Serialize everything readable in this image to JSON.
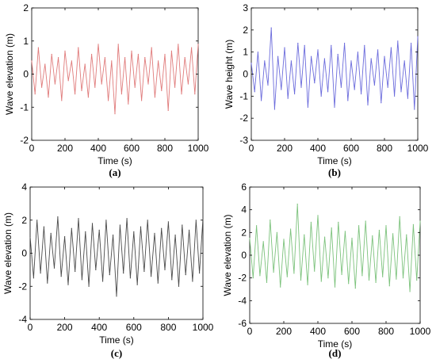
{
  "chart_data": [
    {
      "id": "a",
      "type": "line",
      "caption": "(a)",
      "xlabel": "Time (s)",
      "ylabel": "Wave elevation (m)",
      "xlim": [
        0,
        1000
      ],
      "ylim": [
        -2,
        2
      ],
      "xticks": [
        0,
        200,
        400,
        600,
        800,
        1000
      ],
      "yticks": [
        -2,
        -1,
        0,
        1,
        2
      ],
      "grid": false,
      "color": "#e07b7b",
      "series": [
        {
          "x": [
            0,
            20,
            40,
            60,
            80,
            100,
            120,
            140,
            160,
            180,
            200,
            220,
            240,
            260,
            280,
            300,
            320,
            340,
            360,
            380,
            400,
            420,
            440,
            460,
            480,
            500,
            520,
            540,
            560,
            580,
            600,
            620,
            640,
            660,
            680,
            700,
            720,
            740,
            760,
            780,
            800,
            820,
            840,
            860,
            880,
            900,
            920,
            940,
            960,
            980,
            1000
          ],
          "values": [
            0.4,
            -0.6,
            0.8,
            -0.4,
            0.3,
            -0.7,
            0.6,
            -0.3,
            0.5,
            -0.8,
            0.7,
            -0.2,
            0.4,
            -0.6,
            0.8,
            -0.5,
            0.3,
            -0.7,
            0.6,
            -0.4,
            0.9,
            -0.3,
            0.5,
            -0.8,
            0.4,
            -1.2,
            0.9,
            -0.6,
            0.5,
            -0.9,
            0.7,
            -0.4,
            0.6,
            -0.8,
            0.5,
            -0.3,
            0.8,
            -0.7,
            0.4,
            -0.5,
            0.6,
            -1.1,
            0.7,
            -0.4,
            0.9,
            -0.6,
            0.5,
            -0.3,
            0.8,
            -0.6,
            0.9
          ]
        }
      ]
    },
    {
      "id": "b",
      "type": "line",
      "caption": "(b)",
      "xlabel": "Time (s)",
      "ylabel": "Wave height (m)",
      "xlim": [
        0,
        1000
      ],
      "ylim": [
        -3,
        3
      ],
      "xticks": [
        0,
        200,
        400,
        600,
        800,
        1000
      ],
      "yticks": [
        -3,
        -2,
        -1,
        0,
        1,
        2,
        3
      ],
      "grid": false,
      "color": "#6b6bdc",
      "series": [
        {
          "x": [
            0,
            20,
            40,
            60,
            80,
            100,
            120,
            140,
            160,
            180,
            200,
            220,
            240,
            260,
            280,
            300,
            320,
            340,
            360,
            380,
            400,
            420,
            440,
            460,
            480,
            500,
            520,
            540,
            560,
            580,
            600,
            620,
            640,
            660,
            680,
            700,
            720,
            740,
            760,
            780,
            800,
            820,
            840,
            860,
            880,
            900,
            920,
            940,
            960,
            980,
            1000
          ],
          "values": [
            0.5,
            -0.8,
            1.0,
            -1.2,
            0.6,
            -0.5,
            2.1,
            -1.6,
            0.8,
            -0.7,
            1.2,
            -1.1,
            0.6,
            -0.9,
            1.4,
            -0.6,
            1.3,
            -1.5,
            0.8,
            -0.4,
            1.1,
            -1.0,
            0.7,
            -0.8,
            1.3,
            -1.5,
            0.9,
            -0.6,
            1.4,
            -1.2,
            0.6,
            -0.7,
            1.0,
            -0.9,
            1.3,
            -1.4,
            0.7,
            -0.5,
            1.1,
            -1.3,
            0.8,
            -0.6,
            1.2,
            -1.0,
            1.5,
            -0.8,
            0.6,
            -1.1,
            1.4,
            -1.6,
            1.7
          ]
        }
      ]
    },
    {
      "id": "c",
      "type": "line",
      "caption": "(c)",
      "xlabel": "Time (s)",
      "ylabel": "Wave elevation (m)",
      "xlim": [
        0,
        1000
      ],
      "ylim": [
        -4,
        4
      ],
      "xticks": [
        0,
        200,
        400,
        600,
        800,
        1000
      ],
      "yticks": [
        -4,
        -2,
        0,
        2,
        4
      ],
      "grid": false,
      "color": "#4a4a4a",
      "series": [
        {
          "x": [
            0,
            20,
            40,
            60,
            80,
            100,
            120,
            140,
            160,
            180,
            200,
            220,
            240,
            260,
            280,
            300,
            320,
            340,
            360,
            380,
            400,
            420,
            440,
            460,
            480,
            500,
            520,
            540,
            560,
            580,
            600,
            620,
            640,
            660,
            680,
            700,
            720,
            740,
            760,
            780,
            800,
            820,
            840,
            860,
            880,
            900,
            920,
            940,
            960,
            980,
            1000
          ],
          "values": [
            1.0,
            -1.5,
            2.0,
            -1.2,
            1.6,
            -1.8,
            1.2,
            -0.9,
            2.2,
            -1.4,
            1.0,
            -1.9,
            1.5,
            -1.1,
            2.1,
            -1.6,
            1.3,
            -2.0,
            1.8,
            -1.0,
            1.4,
            -1.7,
            2.0,
            -1.3,
            1.1,
            -2.6,
            1.7,
            -1.2,
            2.1,
            -1.5,
            1.3,
            -1.9,
            1.6,
            -1.1,
            2.0,
            -1.4,
            1.2,
            -1.8,
            1.5,
            -1.0,
            1.9,
            -1.6,
            1.1,
            -2.0,
            1.7,
            -1.3,
            1.4,
            -1.7,
            2.0,
            -1.2,
            2.1
          ]
        }
      ]
    },
    {
      "id": "d",
      "type": "line",
      "caption": "(d)",
      "xlabel": "Time (s)",
      "ylabel": "Wave elevation (m)",
      "xlim": [
        0,
        1000
      ],
      "ylim": [
        -6,
        6
      ],
      "xticks": [
        0,
        200,
        400,
        600,
        800,
        1000
      ],
      "yticks": [
        -6,
        -4,
        -2,
        0,
        2,
        4,
        6
      ],
      "grid": false,
      "color": "#7cc27c",
      "series": [
        {
          "x": [
            0,
            20,
            40,
            60,
            80,
            100,
            120,
            140,
            160,
            180,
            200,
            220,
            240,
            260,
            280,
            300,
            320,
            340,
            360,
            380,
            400,
            420,
            440,
            460,
            480,
            500,
            520,
            540,
            560,
            580,
            600,
            620,
            640,
            660,
            680,
            700,
            720,
            740,
            760,
            780,
            800,
            820,
            840,
            860,
            880,
            900,
            920,
            940,
            960,
            980,
            1000
          ],
          "values": [
            1.5,
            -2.0,
            2.6,
            -1.8,
            1.2,
            -2.4,
            3.1,
            -1.5,
            2.0,
            -2.8,
            1.4,
            -1.9,
            2.3,
            -1.6,
            4.5,
            -2.2,
            1.8,
            -2.6,
            2.9,
            -1.4,
            3.5,
            -2.3,
            1.6,
            -2.0,
            2.4,
            -2.8,
            2.9,
            -1.7,
            2.1,
            -2.5,
            1.5,
            -2.9,
            2.6,
            -1.8,
            3.0,
            -2.2,
            1.7,
            -2.4,
            2.2,
            -1.9,
            2.6,
            -2.7,
            1.9,
            -2.1,
            3.4,
            -2.0,
            1.8,
            -3.2,
            2.7,
            -2.2,
            3.0
          ]
        }
      ]
    }
  ]
}
